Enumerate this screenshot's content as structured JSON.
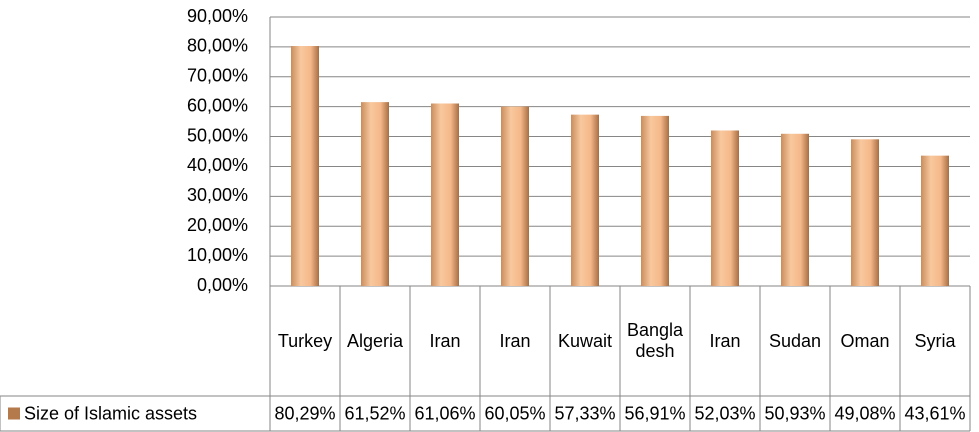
{
  "chart_data": {
    "type": "bar",
    "categories": [
      "Turkey",
      "Algeria",
      "Iran",
      "Iran",
      "Kuwait",
      "Bangladesh",
      "Iran",
      "Sudan",
      "Oman",
      "Syria"
    ],
    "series": [
      {
        "name": "Size of Islamic assets",
        "color": "#f4b88a",
        "values": [
          80.29,
          61.52,
          61.06,
          60.05,
          57.33,
          56.91,
          52.03,
          50.93,
          49.08,
          43.61
        ],
        "value_labels": [
          "80,29%",
          "61,52%",
          "61,06%",
          "60,05%",
          "57,33%",
          "56,91%",
          "52,03%",
          "50,93%",
          "49,08%",
          "43,61%"
        ]
      }
    ],
    "ylim": [
      0,
      90
    ],
    "yticks": [
      {
        "value": 0,
        "label": "0,00%"
      },
      {
        "value": 10,
        "label": "10,00%"
      },
      {
        "value": 20,
        "label": "20,00%"
      },
      {
        "value": 30,
        "label": "30,00%"
      },
      {
        "value": 40,
        "label": "40,00%"
      },
      {
        "value": 50,
        "label": "50,00%"
      },
      {
        "value": 60,
        "label": "60,00%"
      },
      {
        "value": 70,
        "label": "70,00%"
      },
      {
        "value": 80,
        "label": "80,00%"
      },
      {
        "value": 90,
        "label": "90,00%"
      }
    ],
    "grid": true,
    "data_table": true
  }
}
